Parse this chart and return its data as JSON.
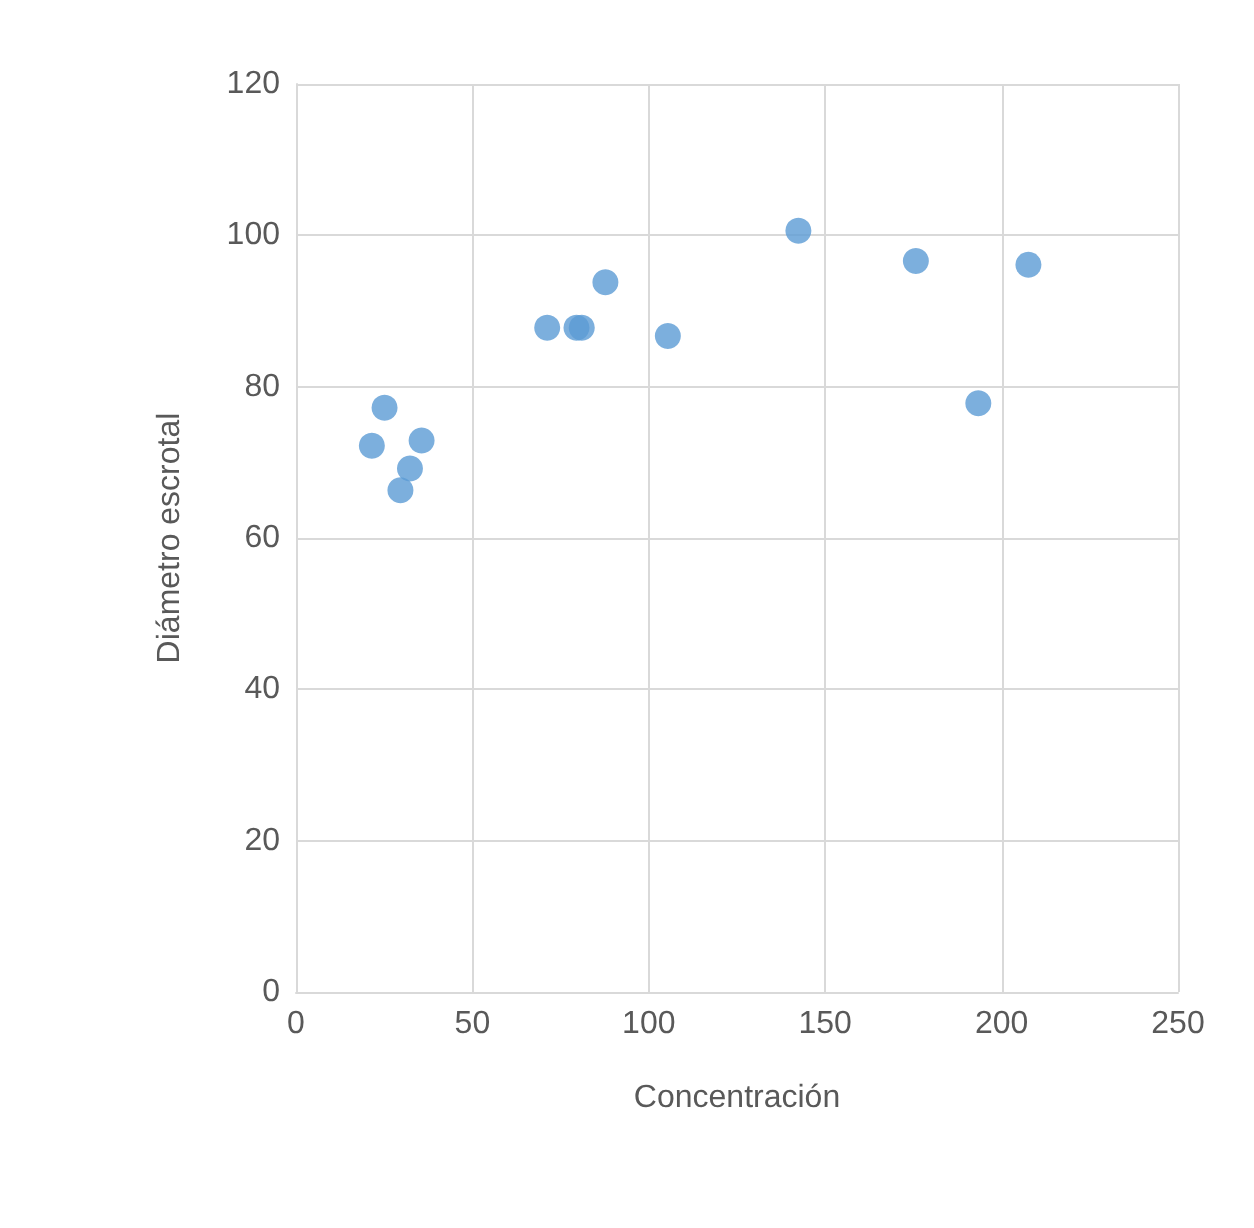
{
  "chart_data": {
    "type": "scatter",
    "xlabel": "Concentración",
    "ylabel": "Diámetro escrotal",
    "x": [
      25.1,
      21.5,
      35.6,
      32.3,
      29.6,
      71.2,
      79.5,
      81,
      87.7,
      105.4,
      142.4,
      175.7,
      207.6,
      193.4
    ],
    "series": [
      {
        "color": "#5b9bd5",
        "values": [
          77.2,
          72.2,
          72.9,
          69.2,
          66.3,
          87.8,
          87.8,
          87.8,
          93.8,
          86.7,
          100.6,
          96.6,
          96.1,
          77.8
        ]
      }
    ],
    "xlim": [
      0,
      250
    ],
    "xticks": [
      0,
      50,
      100,
      150,
      200,
      250
    ],
    "ylim": [
      0,
      120
    ],
    "yticks": [
      0,
      20,
      40,
      60,
      80,
      100,
      120
    ],
    "grid": true,
    "marker": "circle"
  }
}
